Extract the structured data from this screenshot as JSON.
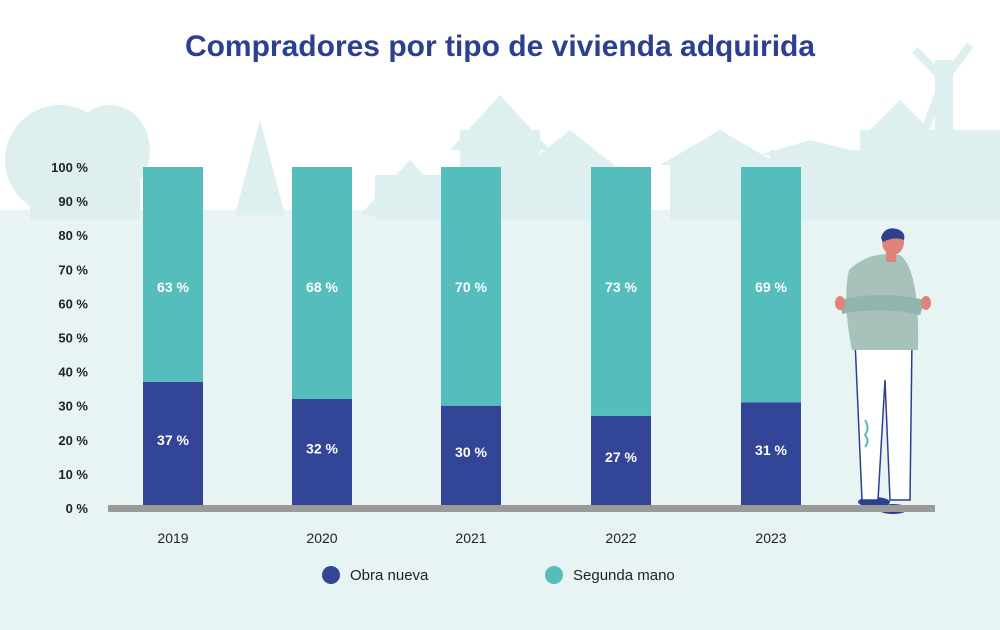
{
  "title": "Compradores por tipo de vivienda adquirida",
  "colors": {
    "obra_nueva": "#334596",
    "segunda_mano": "#55bdbb",
    "background_tint": "#e8f4f4",
    "silhouette": "#ddefee",
    "baseline": "#9a9a9a",
    "title": "#2d3f8f"
  },
  "legend": [
    {
      "label": "Obra nueva",
      "color": "#334596"
    },
    {
      "label": "Segunda mano",
      "color": "#55bdbb"
    }
  ],
  "chart_data": {
    "type": "bar",
    "stacked": true,
    "categories": [
      "2019",
      "2020",
      "2021",
      "2022",
      "2023"
    ],
    "series": [
      {
        "name": "Obra nueva",
        "values": [
          37,
          32,
          30,
          27,
          31
        ],
        "labels": [
          "37 %",
          "32 %",
          "30 %",
          "27 %",
          "31 %"
        ]
      },
      {
        "name": "Segunda mano",
        "values": [
          63,
          68,
          70,
          73,
          69
        ],
        "labels": [
          "63 %",
          "68 %",
          "70 %",
          "73 %",
          "69 %"
        ]
      }
    ],
    "yticks": [
      "0 %",
      "10 %",
      "20 %",
      "30 %",
      "40 %",
      "50 %",
      "60 %",
      "70 %",
      "80 %",
      "90 %",
      "100 %"
    ],
    "ylim": [
      0,
      100
    ],
    "grid": false,
    "legend_position": "bottom"
  }
}
